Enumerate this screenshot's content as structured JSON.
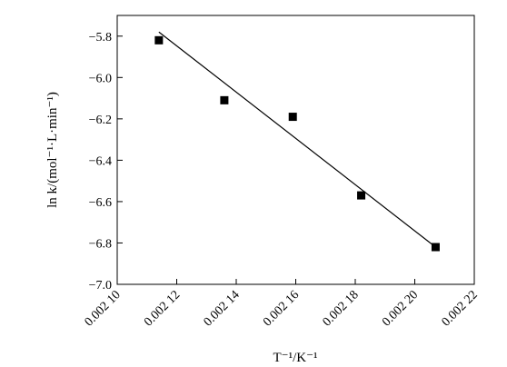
{
  "chart_data": {
    "type": "scatter",
    "xlabel": "T⁻¹/K⁻¹",
    "ylabel": "ln k/(mol⁻¹·L·min⁻¹)",
    "xlim": [
      0.0021,
      0.00222
    ],
    "ylim": [
      -7.0,
      -5.7
    ],
    "x_ticks": [
      0.0021,
      0.00212,
      0.00214,
      0.00216,
      0.00218,
      0.0022,
      0.00222
    ],
    "x_tick_labels": [
      "0.002 10",
      "0.002 12",
      "0.002 14",
      "0.002 16",
      "0.002 18",
      "0.002 20",
      "0.002 22"
    ],
    "y_ticks": [
      -5.8,
      -6.0,
      -6.2,
      -6.4,
      -6.6,
      -6.8,
      -7.0
    ],
    "y_tick_labels": [
      "−5.8",
      "−6.0",
      "−6.2",
      "−6.4",
      "−6.6",
      "−6.8",
      "−7.0"
    ],
    "points": [
      {
        "x": 0.002114,
        "y": -5.82
      },
      {
        "x": 0.002136,
        "y": -6.11
      },
      {
        "x": 0.002159,
        "y": -6.19
      },
      {
        "x": 0.002182,
        "y": -6.57
      },
      {
        "x": 0.002207,
        "y": -6.82
      }
    ],
    "fit_line": {
      "x": [
        0.002114,
        0.002207
      ],
      "y": [
        -5.78,
        -6.82
      ]
    },
    "grid": false,
    "marker_color": "#000000",
    "line_color": "#000000"
  }
}
